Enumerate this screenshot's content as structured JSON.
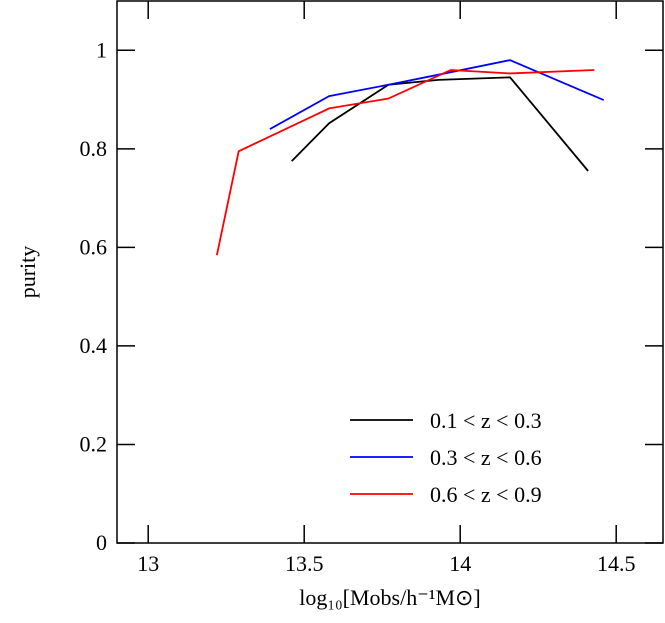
{
  "chart_data": {
    "type": "line",
    "xlabel": "log₁₀[Mobs/h⁻¹M⊙]",
    "ylabel": "purity",
    "xlim": [
      12.9,
      14.65
    ],
    "ylim": [
      0,
      1.1
    ],
    "xticks": [
      13,
      13.5,
      14,
      14.5
    ],
    "yticks": [
      0,
      0.2,
      0.4,
      0.6,
      0.8,
      1
    ],
    "legend": "lower right",
    "series": [
      {
        "name": "0.1 < z < 0.3",
        "color": "#000000",
        "x": [
          13.46,
          13.58,
          13.77,
          13.93,
          14.16,
          14.41
        ],
        "values": [
          0.775,
          0.852,
          0.93,
          0.94,
          0.945,
          0.755
        ]
      },
      {
        "name": "0.3 < z < 0.6",
        "color": "#0000ff",
        "x": [
          13.39,
          13.58,
          13.77,
          13.95,
          14.16,
          14.46
        ],
        "values": [
          0.84,
          0.907,
          0.93,
          0.953,
          0.98,
          0.899
        ]
      },
      {
        "name": "0.6 < z < 0.9",
        "color": "#ff0000",
        "x": [
          13.22,
          13.29,
          13.58,
          13.77,
          13.97,
          14.16,
          14.43
        ],
        "values": [
          0.584,
          0.795,
          0.882,
          0.902,
          0.96,
          0.953,
          0.96
        ]
      }
    ]
  }
}
